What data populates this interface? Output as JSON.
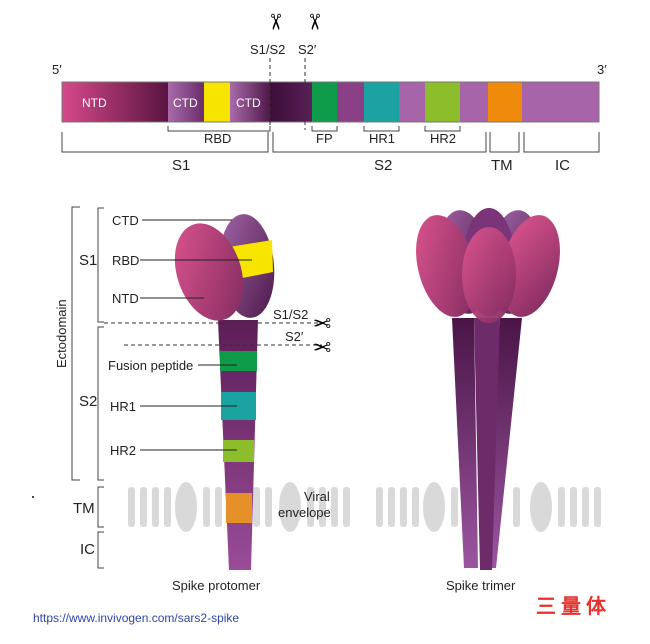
{
  "top_bar": {
    "end_5": "5′",
    "end_3": "3′",
    "segments": {
      "ntd": "NTD",
      "ctd1": "CTD",
      "ctd2": "CTD"
    },
    "cleavage_s1s2": "S1/S2",
    "cleavage_s2p": "S2′",
    "sub_labels": {
      "rbd": "RBD",
      "fp": "FP",
      "hr1": "HR1",
      "hr2": "HR2"
    },
    "bracket_labels": {
      "s1": "S1",
      "s2": "S2",
      "tm": "TM",
      "ic": "IC"
    }
  },
  "protomer": {
    "left_brackets": {
      "ectodomain": "Ectodomain",
      "s1": "S1",
      "s2": "S2",
      "tm": "TM",
      "ic": "IC"
    },
    "labels": {
      "ctd": "CTD",
      "rbd": "RBD",
      "ntd": "NTD",
      "fusion_peptide": "Fusion peptide",
      "hr1": "HR1",
      "hr2": "HR2",
      "s1s2": "S1/S2",
      "s2p": "S2′",
      "viral_envelope": "Viral envelope"
    },
    "caption": "Spike protomer"
  },
  "trimer": {
    "caption": "Spike trimer"
  },
  "colors": {
    "ntd_pink": "#d2417e",
    "dark_purple": "#3e0f3a",
    "mid_purple": "#8a3f86",
    "light_purple": "#a864a8",
    "rbd_yellow": "#f7e500",
    "fp_green": "#0e9b4a",
    "hr1_teal": "#1aa3a0",
    "hr2_green": "#8cbd2a",
    "tm_orange": "#f08a0a",
    "membrane_gray": "#d9d9d9",
    "url_blue": "#3344aa",
    "cn_red": "#e5322d"
  },
  "source_url": "https://www.invivogen.com/sars2-spike",
  "overlay_text": "三量体"
}
